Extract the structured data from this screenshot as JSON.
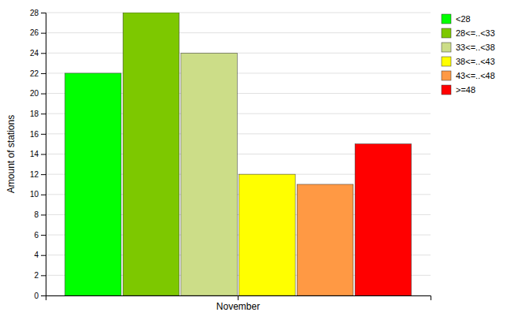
{
  "chart_data": {
    "type": "bar",
    "y_label": "Amount of stations",
    "categories": [
      "November"
    ],
    "series": [
      {
        "name": "<28",
        "color": "#00FF00",
        "values": [
          22
        ]
      },
      {
        "name": "28<=..<33",
        "color": "#7DC800",
        "values": [
          28
        ]
      },
      {
        "name": "33<=..<38",
        "color": "#CCDD88",
        "values": [
          24
        ]
      },
      {
        "name": "38<=..<43",
        "color": "#FFFF00",
        "values": [
          12
        ]
      },
      {
        "name": "43<=..<48",
        "color": "#FF9944",
        "values": [
          11
        ]
      },
      {
        "name": ">=48",
        "color": "#FF0000",
        "values": [
          15
        ]
      }
    ],
    "ylim": [
      0,
      28
    ],
    "yticks": [
      0,
      2,
      4,
      6,
      8,
      10,
      12,
      14,
      16,
      18,
      20,
      22,
      24,
      26,
      28
    ],
    "grid": true,
    "legend": "upper-right"
  }
}
